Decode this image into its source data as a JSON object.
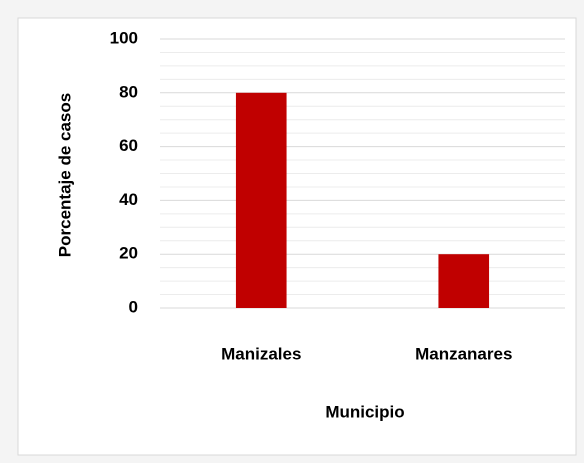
{
  "chart_data": {
    "type": "bar",
    "x_label": "Municipio",
    "y_label": "Porcentaje de casos",
    "categories": [
      "Manizales",
      "Manzanares"
    ],
    "values": [
      80,
      20
    ],
    "color": "#c00000",
    "ylim": [
      0,
      100
    ],
    "yticks": [
      0,
      20,
      40,
      60,
      80,
      100
    ],
    "minor_yticks": [
      5,
      10,
      15,
      25,
      30,
      35,
      45,
      50,
      55,
      65,
      70,
      75,
      85,
      90,
      95
    ],
    "grid": true
  }
}
